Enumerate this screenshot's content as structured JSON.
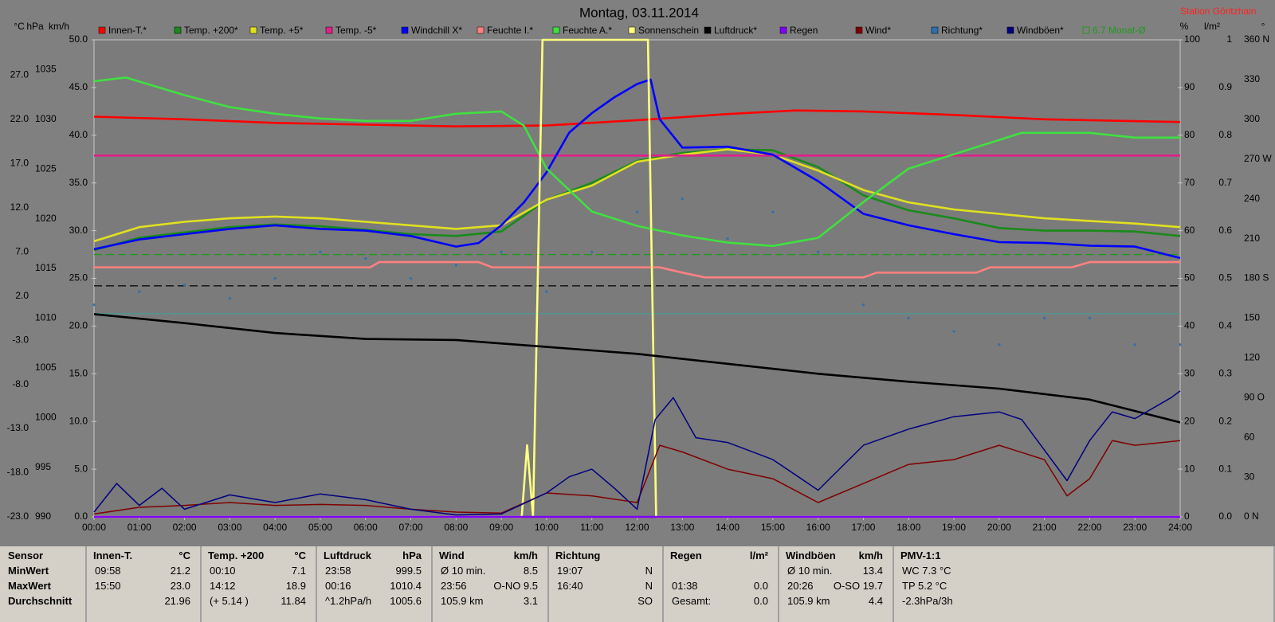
{
  "chart_data": {
    "type": "line",
    "title": "Montag, 03.11.2014",
    "station": "Station Göritzhain",
    "xlim": [
      0,
      24
    ],
    "xticks": [
      {
        "value": 0,
        "label": "00:00"
      },
      {
        "value": 1,
        "label": "01:00"
      },
      {
        "value": 2,
        "label": "02:00"
      },
      {
        "value": 3,
        "label": "03:00"
      },
      {
        "value": 4,
        "label": "04:00"
      },
      {
        "value": 5,
        "label": "05:00"
      },
      {
        "value": 6,
        "label": "06:00"
      },
      {
        "value": 7,
        "label": "07:00"
      },
      {
        "value": 8,
        "label": "08:00"
      },
      {
        "value": 9,
        "label": "09:00"
      },
      {
        "value": 10,
        "label": "10:00"
      },
      {
        "value": 11,
        "label": "11:00"
      },
      {
        "value": 12,
        "label": "12:00"
      },
      {
        "value": 13,
        "label": "13:00"
      },
      {
        "value": 14,
        "label": "14:00"
      },
      {
        "value": 15,
        "label": "15:00"
      },
      {
        "value": 16,
        "label": "16:00"
      },
      {
        "value": 17,
        "label": "17:00"
      },
      {
        "value": 18,
        "label": "18:00"
      },
      {
        "value": 19,
        "label": "19:00"
      },
      {
        "value": 20,
        "label": "20:00"
      },
      {
        "value": 21,
        "label": "21:00"
      },
      {
        "value": 22,
        "label": "22:00"
      },
      {
        "value": 23,
        "label": "23:00"
      },
      {
        "value": 24,
        "label": "24:00"
      }
    ],
    "yunit": "km/h",
    "ylim": [
      0,
      50
    ],
    "yticks": [
      {
        "value": 0,
        "label": "0.0"
      },
      {
        "value": 5,
        "label": "5.0"
      },
      {
        "value": 10,
        "label": "10.0"
      },
      {
        "value": 15,
        "label": "15.0"
      },
      {
        "value": 20,
        "label": "20.0"
      },
      {
        "value": 25,
        "label": "25.0"
      },
      {
        "value": 30,
        "label": "30.0"
      },
      {
        "value": 35,
        "label": "35.0"
      },
      {
        "value": 40,
        "label": "40.0"
      },
      {
        "value": 45,
        "label": "45.0"
      },
      {
        "value": 50,
        "label": "50.0"
      }
    ],
    "y2unit": "°C",
    "y2lim": [
      -23,
      31
    ],
    "y2ticks": [
      {
        "value": -23,
        "label": "-23.0"
      },
      {
        "value": -18,
        "label": "-18.0"
      },
      {
        "value": -13,
        "label": "-13.0"
      },
      {
        "value": -8,
        "label": "-8.0"
      },
      {
        "value": -3,
        "label": "-3.0"
      },
      {
        "value": 2,
        "label": "2.0"
      },
      {
        "value": 7,
        "label": "7.0"
      },
      {
        "value": 12,
        "label": "12.0"
      },
      {
        "value": 17,
        "label": "17.0"
      },
      {
        "value": 22,
        "label": "22.0"
      },
      {
        "value": 27,
        "label": "27.0"
      }
    ],
    "y3unit": "hPa",
    "y3lim": [
      990,
      1038
    ],
    "y3ticks": [
      990,
      995,
      1000,
      1005,
      1010,
      1015,
      1020,
      1025,
      1030,
      1035
    ],
    "y4unit": "%",
    "y4lim": [
      0,
      100
    ],
    "y4ticks": [
      0,
      10,
      20,
      30,
      40,
      50,
      60,
      70,
      80,
      90,
      100
    ],
    "y5unit": "l/m²",
    "y5lim": [
      0,
      1
    ],
    "y5ticks": [
      {
        "value": 0,
        "label": "0.0"
      },
      0.1,
      0.2,
      0.3,
      0.4,
      0.5,
      0.6,
      0.7,
      0.8,
      0.9,
      1
    ],
    "y6unit": "°",
    "y6lim": [
      0,
      360
    ],
    "y6ticks": [
      {
        "value": 0,
        "label": "0 N"
      },
      30,
      60,
      {
        "value": 90,
        "label": "90 O"
      },
      120,
      150,
      {
        "value": 180,
        "label": "180 S"
      },
      210,
      240,
      {
        "value": 270,
        "label": "270 W"
      },
      300,
      330,
      {
        "value": 360,
        "label": "360 N"
      }
    ],
    "reference_lines": [
      {
        "axis": "y2",
        "value": 6.7,
        "color": "#1f9a1f",
        "dashed": true,
        "label": "6.7 Monat-Ø"
      },
      {
        "axis": "y3",
        "value": 1013.25,
        "color": "#000000",
        "dashed": true
      },
      {
        "axis": "y2",
        "value": 0,
        "color": "#4a9a9a",
        "dashed": false
      }
    ],
    "series": [
      {
        "name": "Innen-T.*",
        "color": "#ff0000",
        "axis": "y2",
        "x": [
          0,
          2,
          4,
          6,
          8,
          10,
          12,
          14,
          15.5,
          17,
          19,
          21,
          24
        ],
        "values": [
          22.3,
          22.0,
          21.6,
          21.4,
          21.2,
          21.3,
          21.9,
          22.6,
          23.0,
          22.9,
          22.5,
          22.0,
          21.7
        ]
      },
      {
        "name": "Temp. +200*",
        "color": "#1a8a1a",
        "axis": "y2",
        "x": [
          0,
          1,
          2,
          3,
          4,
          5,
          6,
          7,
          8,
          9,
          10,
          11,
          12,
          13,
          14,
          15,
          16,
          17,
          18,
          19,
          20,
          21,
          22,
          23,
          24
        ],
        "values": [
          7.2,
          8.6,
          9.2,
          9.8,
          10.1,
          9.9,
          9.5,
          9.0,
          8.8,
          9.3,
          12.9,
          14.8,
          17.3,
          18.2,
          18.6,
          18.5,
          16.6,
          13.4,
          11.7,
          10.8,
          9.7,
          9.4,
          9.4,
          9.3,
          8.8
        ]
      },
      {
        "name": "Temp. +5*",
        "color": "#e0e020",
        "axis": "y2",
        "x": [
          0,
          1,
          2,
          3,
          4,
          5,
          6,
          7,
          8,
          9,
          10,
          11,
          12,
          13,
          14,
          15,
          16,
          17,
          18,
          19,
          20,
          21,
          22,
          23,
          24
        ],
        "values": [
          8.2,
          9.8,
          10.4,
          10.8,
          11.0,
          10.8,
          10.4,
          10.0,
          9.6,
          10.0,
          12.9,
          14.5,
          17.2,
          18.0,
          18.6,
          18.0,
          16.2,
          14.0,
          12.6,
          11.8,
          11.3,
          10.8,
          10.5,
          10.2,
          9.8
        ]
      },
      {
        "name": "Temp. -5*",
        "color": "#e0208a",
        "axis": "y2",
        "x": [
          0,
          24
        ],
        "values": [
          17.9,
          17.9
        ]
      },
      {
        "name": "Windchill X*",
        "color": "#0000ff",
        "axis": "y2",
        "x": [
          0,
          1,
          2,
          3,
          4,
          5,
          6,
          7,
          8,
          8.5,
          9,
          9.5,
          10,
          10.5,
          11,
          11.5,
          12,
          12.3,
          12.5,
          13,
          14,
          15,
          16,
          17,
          18,
          19,
          20,
          21,
          22,
          23,
          24
        ],
        "values": [
          7.3,
          8.4,
          9.0,
          9.6,
          10.0,
          9.6,
          9.4,
          8.8,
          7.6,
          8.0,
          10.0,
          12.6,
          16.0,
          20.5,
          22.7,
          24.5,
          26.0,
          26.5,
          22.0,
          18.8,
          18.9,
          18.0,
          15.0,
          11.3,
          10.0,
          9.0,
          8.1,
          8.0,
          7.7,
          7.6,
          6.3
        ]
      },
      {
        "name": "Feuchte I.*",
        "color": "#ff8080",
        "axis": "y4",
        "x": [
          0,
          6.1,
          6.3,
          8.5,
          8.8,
          12.5,
          13,
          13.5,
          17,
          17.3,
          19.5,
          19.8,
          21.6,
          22,
          24
        ],
        "values": [
          52.3,
          52.3,
          53.4,
          53.4,
          52.3,
          52.3,
          51.2,
          50.2,
          50.2,
          51.2,
          51.2,
          52.3,
          52.3,
          53.4,
          53.4
        ]
      },
      {
        "name": "Feuchte A.*",
        "color": "#40e040",
        "axis": "y4",
        "x": [
          0,
          0.7,
          2,
          3,
          4,
          5,
          6,
          7,
          8,
          9,
          9.5,
          10,
          11,
          12,
          13,
          14,
          15,
          16,
          17,
          18,
          19,
          20,
          20.5,
          22,
          23,
          24
        ],
        "values": [
          91.3,
          92.1,
          88.4,
          85.9,
          84.5,
          83.5,
          83.0,
          83.0,
          84.5,
          85.0,
          82,
          73,
          64,
          61,
          59,
          57.5,
          56.8,
          58.5,
          66,
          73,
          76,
          79,
          80.5,
          80.5,
          79.5,
          79.5
        ]
      },
      {
        "name": "Sonnenschein",
        "color": "#ffff80",
        "axis": "y4",
        "x": [
          0,
          9.45,
          9.57,
          9.7,
          9.91,
          12.24,
          12.42,
          24
        ],
        "values": [
          0,
          0,
          15,
          0,
          100,
          100,
          0,
          0
        ]
      },
      {
        "name": "Luftdruck*",
        "color": "#000000",
        "axis": "y3",
        "x": [
          0,
          2,
          4,
          6,
          8,
          10,
          12,
          14,
          16,
          18,
          20,
          22,
          24
        ],
        "values": [
          1010.4,
          1009.5,
          1008.5,
          1007.9,
          1007.8,
          1007.1,
          1006.4,
          1005.4,
          1004.4,
          1003.6,
          1002.9,
          1001.8,
          999.5
        ]
      },
      {
        "name": "Regen",
        "color": "#8000ff",
        "axis": "y5",
        "x": [
          0,
          24
        ],
        "values": [
          0,
          0
        ]
      },
      {
        "name": "Wind*",
        "color": "#800000",
        "axis": "y",
        "x": [
          0,
          1,
          2,
          3,
          4,
          5,
          6,
          7,
          8,
          9,
          10,
          11,
          12,
          12.5,
          13,
          14,
          15,
          16,
          17,
          18,
          19,
          20,
          21,
          21.5,
          22,
          22.5,
          23,
          24
        ],
        "values": [
          0.3,
          1.0,
          1.2,
          1.5,
          1.2,
          1.3,
          1.2,
          0.8,
          0.5,
          0.4,
          2.5,
          2.2,
          1.5,
          7.5,
          6.8,
          5.0,
          4.0,
          1.5,
          3.5,
          5.5,
          6.0,
          7.5,
          6.0,
          2.2,
          4.0,
          8.0,
          7.5,
          8.0
        ]
      },
      {
        "name": "Richtung*",
        "color": "#2f6faf",
        "axis": "y6",
        "mode": "markers",
        "x": [
          0,
          1,
          2,
          3,
          4,
          5,
          6,
          7,
          8,
          9,
          10,
          11,
          12,
          13,
          14,
          15,
          16,
          17,
          18,
          19,
          20,
          21,
          22,
          23,
          24
        ],
        "values": [
          160,
          170,
          175,
          165,
          180,
          200,
          195,
          180,
          190,
          200,
          170,
          200,
          230,
          240,
          210,
          230,
          200,
          160,
          150,
          140,
          130,
          150,
          150,
          130,
          130
        ]
      },
      {
        "name": "Windböen*",
        "color": "#000080",
        "axis": "y",
        "x": [
          0,
          0.5,
          1,
          1.5,
          2,
          3,
          4,
          5,
          6,
          7,
          8,
          9,
          10,
          10.5,
          11,
          11.5,
          12,
          12.4,
          12.8,
          13.3,
          14,
          15,
          16,
          17,
          18,
          19,
          20,
          20.5,
          21,
          21.5,
          22,
          22.5,
          23,
          23.8,
          24
        ],
        "values": [
          0.5,
          3.5,
          1.2,
          3.0,
          0.8,
          2.3,
          1.5,
          2.4,
          1.8,
          0.8,
          0.2,
          0.3,
          2.5,
          4.2,
          5.0,
          3.0,
          0.8,
          10.2,
          12.5,
          8.3,
          7.8,
          6.0,
          2.8,
          7.5,
          9.2,
          10.5,
          11.0,
          10.2,
          7.0,
          3.8,
          8.0,
          11.0,
          10.3,
          12.5,
          13.2
        ]
      }
    ]
  },
  "table": {
    "first_header": "Sensor",
    "row_labels": [
      "MinWert",
      "MaxWert",
      "Durchschnitt"
    ],
    "columns": [
      {
        "header": "Innen-T.",
        "unit": "°C",
        "cells": [
          {
            "left": "09:58",
            "right": "21.2"
          },
          {
            "left": "15:50",
            "right": "23.0"
          },
          {
            "right": "21.96"
          }
        ]
      },
      {
        "header": "Temp. +200",
        "unit": "°C",
        "cells": [
          {
            "left": "00:10",
            "right": "7.1"
          },
          {
            "left": "14:12",
            "right": "18.9"
          },
          {
            "left": "(+ 5.14 )",
            "right": "11.84"
          }
        ]
      },
      {
        "header": "Luftdruck",
        "unit": "hPa",
        "cells": [
          {
            "left": "23:58",
            "right": "999.5"
          },
          {
            "left": "00:16",
            "right": "1010.4"
          },
          {
            "left": "^1.2hPa/h",
            "right": "1005.6"
          }
        ]
      },
      {
        "header": "Wind",
        "unit": "km/h",
        "cells": [
          {
            "left": "Ø 10 min.",
            "right": "8.5"
          },
          {
            "left": "23:56",
            "right": "O-NO 9.5"
          },
          {
            "left": "105.9 km",
            "right": "3.1"
          }
        ]
      },
      {
        "header": "Richtung",
        "cells": [
          {
            "left": "19:07",
            "right": "N"
          },
          {
            "left": "16:40",
            "right": "N"
          },
          {
            "right": "SO"
          }
        ]
      },
      {
        "header": "Regen",
        "unit": "l/m²",
        "cells": [
          {},
          {
            "left": "01:38",
            "right": "0.0"
          },
          {
            "left": "Gesamt:",
            "right": "0.0"
          }
        ]
      },
      {
        "header": "Windböen",
        "unit": "km/h",
        "cells": [
          {
            "left": "Ø 10 min.",
            "right": "13.4"
          },
          {
            "left": "20:26",
            "right": "O-SO 19.7"
          },
          {
            "left": "105.9 km",
            "right": "4.4"
          }
        ]
      },
      {
        "header": "PMV-1:1",
        "cells": [
          {
            "left": "WC 7.3 °C"
          },
          {
            "left": "TP 5.2 °C"
          },
          {
            "left": "-2.3hPa/3h"
          }
        ]
      }
    ]
  }
}
